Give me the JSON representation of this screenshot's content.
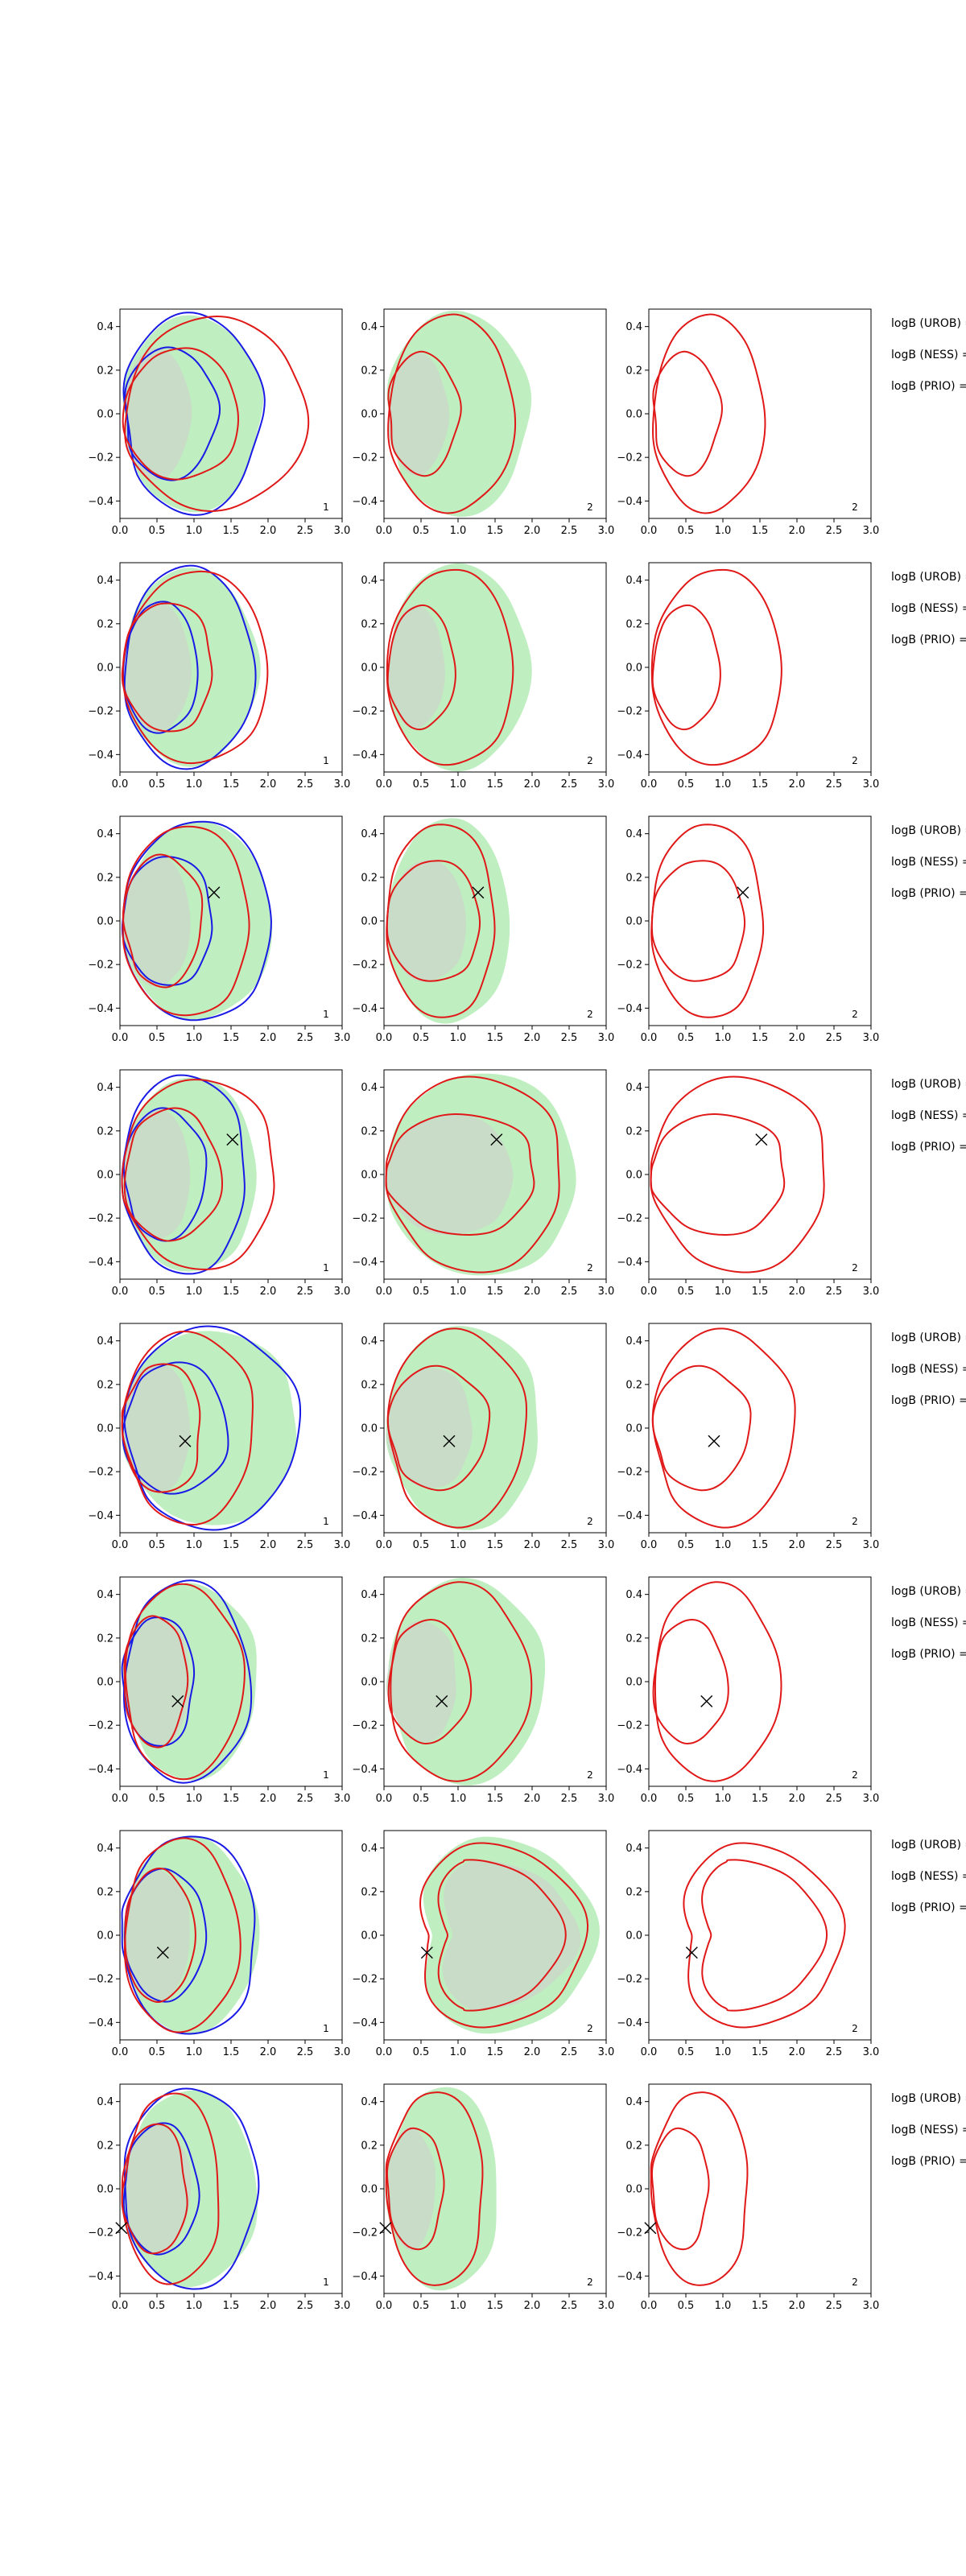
{
  "figure": {
    "description_rows": 8,
    "panels_per_row": 3
  },
  "colors": {
    "fill_outer": "#bfeec0",
    "fill_inner": "#c8dcc8",
    "red": "#e01818",
    "blue": "#1a1ae6",
    "axis": "#000000",
    "marker": "#000000"
  },
  "chart_data": {
    "type": "contour-grid",
    "x_ticks": [
      "0.0",
      "0.5",
      "1.0",
      "1.5",
      "2.0",
      "2.5",
      "3.0"
    ],
    "y_ticks": [
      "0.4",
      "0.2",
      "0.0",
      "−0.2",
      "−0.4"
    ],
    "xlim": [
      0,
      3
    ],
    "ylim": [
      -0.48,
      0.48
    ],
    "legend_labels": [
      "logB (UROB) =",
      "logB (NESS) =",
      "logB (PRIO) ="
    ],
    "panel_tags": [
      "1",
      "2",
      "2"
    ],
    "rows": [
      {
        "marker": null,
        "blue_outer": 1.85,
        "blue_inner": 1.25,
        "red_outer": 2.45,
        "red_inner": 1.55,
        "m_outer": 1.7,
        "m_inner": 0.95,
        "r3_outer": 1.5,
        "r3_inner": 0.9,
        "variant": 0
      },
      {
        "marker": null,
        "blue_outer": 1.75,
        "blue_inner": 1.0,
        "red_outer": 1.95,
        "red_inner": 1.2,
        "m_outer": 1.7,
        "m_inner": 0.9,
        "r3_outer": 1.75,
        "r3_inner": 0.9,
        "variant": 1
      },
      {
        "marker": [
          1.27,
          0.13
        ],
        "blue_outer": 2.0,
        "blue_inner": 1.2,
        "red_outer": 1.7,
        "red_inner": 1.05,
        "m_outer": 1.45,
        "m_inner": 1.25,
        "r3_outer": 1.5,
        "r3_inner": 1.25,
        "variant": 2
      },
      {
        "marker": [
          1.52,
          0.16
        ],
        "blue_outer": 1.65,
        "blue_inner": 1.1,
        "red_outer": 2.05,
        "red_inner": 1.3,
        "m_outer": 2.35,
        "m_inner": 2.0,
        "r3_outer": 2.35,
        "r3_inner": 1.8,
        "variant": 3
      },
      {
        "marker": [
          0.88,
          -0.06
        ],
        "blue_outer": 2.35,
        "blue_inner": 1.4,
        "red_outer": 1.75,
        "red_inner": 1.05,
        "m_outer": 1.85,
        "m_inner": 1.35,
        "r3_outer": 1.9,
        "r3_inner": 1.3,
        "variant": 4
      },
      {
        "marker": [
          0.78,
          -0.09
        ],
        "blue_outer": 1.7,
        "blue_inner": 0.95,
        "red_outer": 1.6,
        "red_inner": 0.85,
        "m_outer": 1.9,
        "m_inner": 1.1,
        "r3_outer": 1.7,
        "r3_inner": 1.0,
        "variant": 5
      },
      {
        "marker": [
          0.58,
          -0.08
        ],
        "blue_outer": 1.8,
        "blue_inner": 1.1,
        "red_outer": 1.55,
        "red_inner": 0.95,
        "m_outer": 2.7,
        "m_inner": 2.4,
        "r3_outer": 2.6,
        "r3_inner": 2.35,
        "variant": 6
      },
      {
        "marker": [
          0.02,
          -0.18
        ],
        "blue_outer": 1.8,
        "blue_inner": 1.0,
        "red_outer": 1.3,
        "red_inner": 0.85,
        "m_outer": 1.3,
        "m_inner": 0.75,
        "r3_outer": 1.3,
        "r3_inner": 0.75,
        "variant": 7
      }
    ]
  }
}
